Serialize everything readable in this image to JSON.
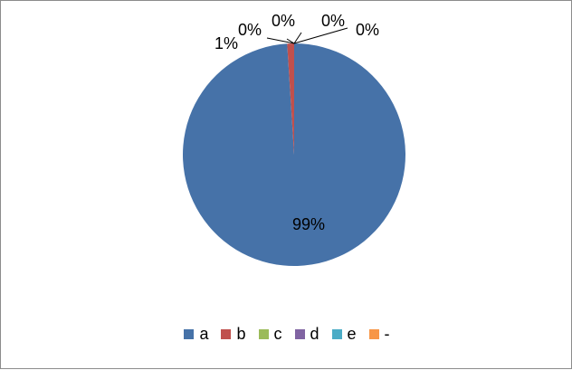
{
  "chart_data": {
    "type": "pie",
    "categories": [
      "a",
      "b",
      "c",
      "d",
      "e",
      "-"
    ],
    "values": [
      99,
      1,
      0,
      0,
      0,
      0
    ],
    "data_labels": [
      "99%",
      "1%",
      "0%",
      "0%",
      "0%",
      "0%"
    ],
    "colors": [
      "#4672A8",
      "#C0504D",
      "#9BBB59",
      "#8064A2",
      "#4BACC6",
      "#F79646"
    ],
    "legend_position": "bottom",
    "title": ""
  }
}
